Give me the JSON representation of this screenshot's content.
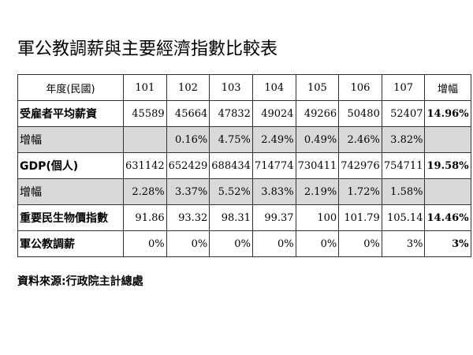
{
  "title": "軍公教調薪與主要經濟指數比較表",
  "table": {
    "header": [
      "年度(民國)",
      "101",
      "102",
      "103",
      "104",
      "105",
      "106",
      "107",
      "增幅"
    ],
    "rows": [
      {
        "label": "受雇者平均薪資",
        "values": [
          "45589",
          "45664",
          "47832",
          "49024",
          "49266",
          "50480",
          "52407"
        ],
        "total": "14.96%",
        "shaded": false
      },
      {
        "label": "增幅",
        "values": [
          "",
          "0.16%",
          "4.75%",
          "2.49%",
          "0.49%",
          "2.46%",
          "3.82%"
        ],
        "total": "",
        "shaded": true
      },
      {
        "label": "GDP(個人)",
        "values": [
          "631142",
          "652429",
          "688434",
          "714774",
          "730411",
          "742976",
          "754711"
        ],
        "total": "19.58%",
        "shaded": false
      },
      {
        "label": "增幅",
        "values": [
          "2.28%",
          "3.37%",
          "5.52%",
          "3.83%",
          "2.19%",
          "1.72%",
          "1.58%"
        ],
        "total": "",
        "shaded": true
      },
      {
        "label": "重要民生物價指數",
        "values": [
          "91.86",
          "93.32",
          "98.31",
          "99.37",
          "100",
          "101.79",
          "105.14"
        ],
        "total": "14.46%",
        "shaded": false
      },
      {
        "label": "軍公教調薪",
        "values": [
          "0%",
          "0%",
          "0%",
          "0%",
          "0%",
          "0%",
          "3%"
        ],
        "total": "3%",
        "shaded": false
      }
    ]
  },
  "source": "資料來源:行政院主計總處",
  "colors": {
    "shaded_row": "#d9d9d9"
  }
}
